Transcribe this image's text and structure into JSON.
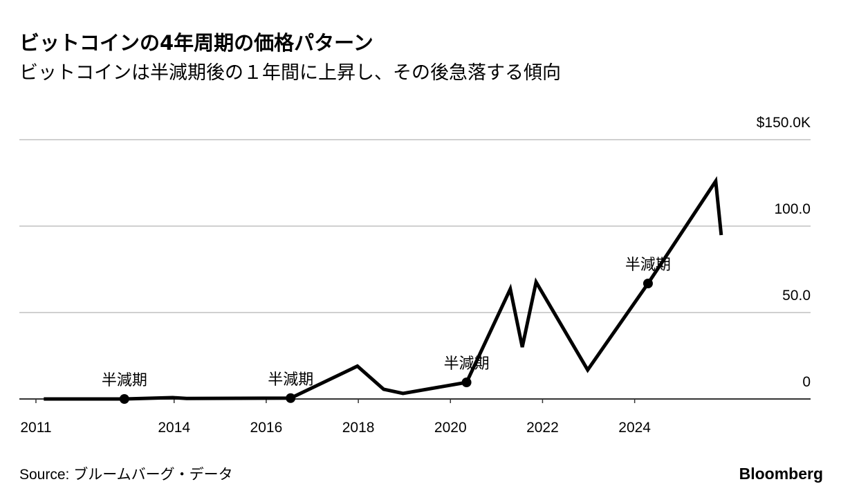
{
  "chart_data": {
    "type": "line",
    "title": "ビットコインの4年周期の価格パターン",
    "subtitle": "ビットコインは半減期後の１年間に上昇し、その後急落する傾向",
    "source": "Source: ブルームバーグ・データ",
    "brand": "Bloomberg",
    "xlim": [
      2010.64,
      2027.82
    ],
    "xticks": [
      2011,
      2014,
      2016,
      2018,
      2020,
      2022,
      2024
    ],
    "ylim": [
      0,
      150
    ],
    "yticks": [
      0,
      {
        "value": 50,
        "label": "50.0"
      },
      {
        "value": 100,
        "label": "100.0"
      },
      {
        "value": 150,
        "label": "$150.0K"
      }
    ],
    "grid": true,
    "series": [
      {
        "color": "#000000",
        "x": [
          2011.17,
          2012.92,
          2013.97,
          2014.27,
          2016.53,
          2017.98,
          2018.55,
          2018.97,
          2020.35,
          2021.3,
          2021.56,
          2021.86,
          2022.98,
          2024.29,
          2025.76,
          2025.88
        ],
        "values": [
          0,
          0,
          0.8,
          0.3,
          0.5,
          19,
          5.6,
          3.2,
          9.6,
          63.6,
          30,
          67.6,
          16.8,
          66.8,
          126,
          94.8
        ]
      }
    ],
    "annotations": [
      {
        "x": 2012.92,
        "y": 0,
        "label": "半減期"
      },
      {
        "x": 2016.53,
        "y": 0.5,
        "label": "半減期"
      },
      {
        "x": 2020.35,
        "y": 9.6,
        "label": "半減期"
      },
      {
        "x": 2024.29,
        "y": 66.8,
        "label": "半減期"
      }
    ]
  }
}
